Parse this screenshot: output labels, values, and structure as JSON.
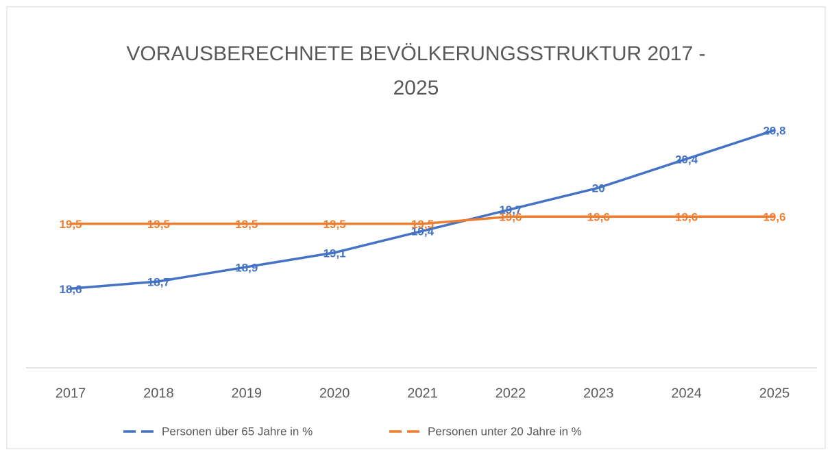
{
  "chart_data": {
    "type": "line",
    "title": [
      "VORAUSBERECHNETE BEVÖLKERUNGSSTRUKTUR 2017 -",
      "2025"
    ],
    "categories": [
      "2017",
      "2018",
      "2019",
      "2020",
      "2021",
      "2022",
      "2023",
      "2024",
      "2025"
    ],
    "series": [
      {
        "name": "Personen über 65 Jahre in %",
        "color": "#4472c4",
        "values": [
          18.6,
          18.7,
          18.9,
          19.1,
          19.4,
          19.7,
          20,
          20.4,
          20.8
        ],
        "value_labels": [
          "18,6",
          "18,7",
          "18,9",
          "19,1",
          "19,4",
          "19,7",
          "20",
          "20,4",
          "20,8"
        ]
      },
      {
        "name": "Personen unter 20 Jahre in %",
        "color": "#ed7d31",
        "values": [
          19.5,
          19.5,
          19.5,
          19.5,
          19.5,
          19.6,
          19.6,
          19.6,
          19.6
        ],
        "value_labels": [
          "19,5",
          "19,5",
          "19,5",
          "19,5",
          "19,5",
          "19,6",
          "19,6",
          "19,6",
          "19,6"
        ]
      }
    ],
    "ylim": [
      17.5,
      21
    ],
    "legend": "bottom"
  }
}
